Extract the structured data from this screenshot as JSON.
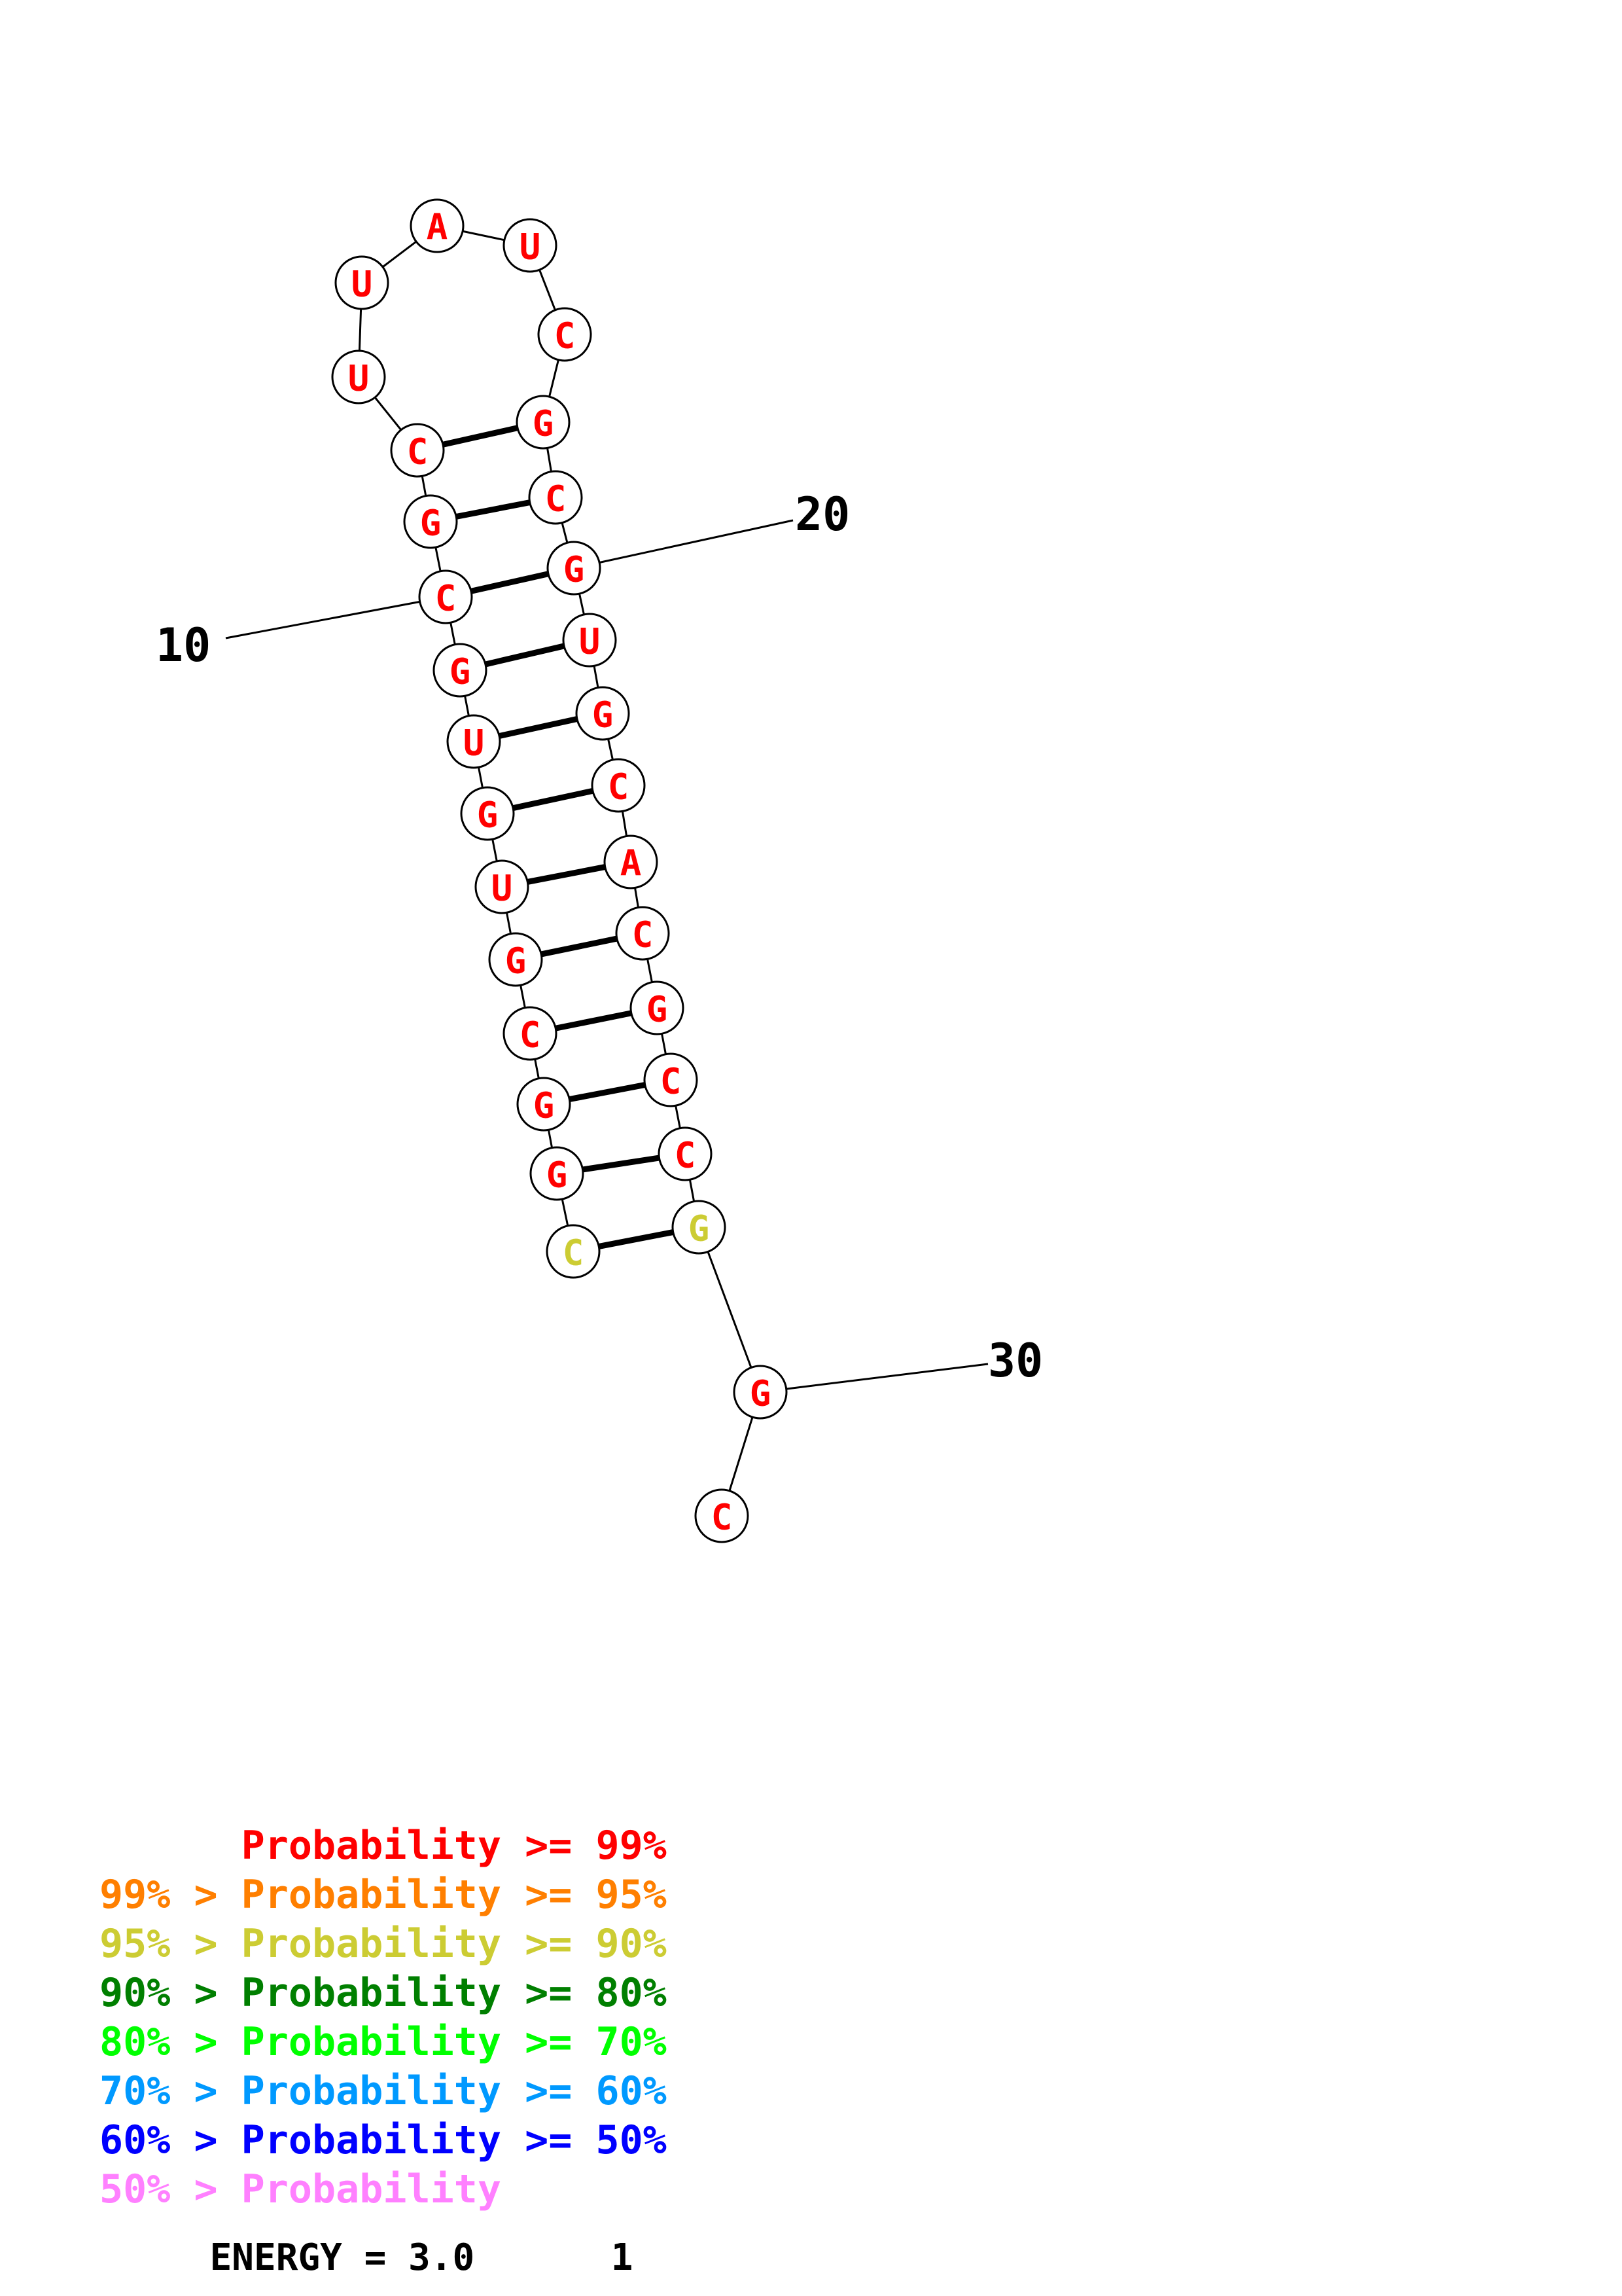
{
  "colors": {
    "ge99": "#ff0000",
    "ge95": "#ff7f00",
    "ge90": "#cccc33",
    "ge80": "#007f00",
    "ge70": "#00ff00",
    "ge60": "#0099ff",
    "ge50": "#0000ff",
    "lt50": "#ff80ff"
  },
  "nucleotides": [
    {
      "base": "C",
      "prob": "ge90"
    },
    {
      "base": "G",
      "prob": "ge99"
    },
    {
      "base": "G",
      "prob": "ge99"
    },
    {
      "base": "C",
      "prob": "ge99"
    },
    {
      "base": "G",
      "prob": "ge99"
    },
    {
      "base": "U",
      "prob": "ge99"
    },
    {
      "base": "G",
      "prob": "ge99"
    },
    {
      "base": "U",
      "prob": "ge99"
    },
    {
      "base": "G",
      "prob": "ge99"
    },
    {
      "base": "C",
      "prob": "ge99"
    },
    {
      "base": "G",
      "prob": "ge99"
    },
    {
      "base": "C",
      "prob": "ge99"
    },
    {
      "base": "U",
      "prob": "ge99"
    },
    {
      "base": "U",
      "prob": "ge99"
    },
    {
      "base": "A",
      "prob": "ge99"
    },
    {
      "base": "U",
      "prob": "ge99"
    },
    {
      "base": "C",
      "prob": "ge99"
    },
    {
      "base": "G",
      "prob": "ge99"
    },
    {
      "base": "C",
      "prob": "ge99"
    },
    {
      "base": "G",
      "prob": "ge99"
    },
    {
      "base": "U",
      "prob": "ge99"
    },
    {
      "base": "G",
      "prob": "ge99"
    },
    {
      "base": "C",
      "prob": "ge99"
    },
    {
      "base": "A",
      "prob": "ge99"
    },
    {
      "base": "C",
      "prob": "ge99"
    },
    {
      "base": "G",
      "prob": "ge99"
    },
    {
      "base": "C",
      "prob": "ge99"
    },
    {
      "base": "C",
      "prob": "ge99"
    },
    {
      "base": "G",
      "prob": "ge90"
    },
    {
      "base": "G",
      "prob": "ge99"
    },
    {
      "base": "C",
      "prob": "ge99"
    }
  ],
  "pairs": [
    [
      1,
      29
    ],
    [
      2,
      28
    ],
    [
      3,
      27
    ],
    [
      4,
      26
    ],
    [
      5,
      25
    ],
    [
      6,
      24
    ],
    [
      7,
      23
    ],
    [
      8,
      22
    ],
    [
      9,
      21
    ],
    [
      10,
      20
    ],
    [
      11,
      19
    ],
    [
      12,
      18
    ]
  ],
  "position_labels": [
    {
      "index": 10,
      "text": "10"
    },
    {
      "index": 20,
      "text": "20"
    },
    {
      "index": 30,
      "text": "30"
    }
  ],
  "legend": [
    {
      "prefix": "    ",
      "text": "Probability >= 99%",
      "color_key": "ge99"
    },
    {
      "prefix": "99% > ",
      "text": "Probability >= 95%",
      "color_key": "ge95"
    },
    {
      "prefix": "95% > ",
      "text": "Probability >= 90%",
      "color_key": "ge90"
    },
    {
      "prefix": "90% > ",
      "text": "Probability >= 80%",
      "color_key": "ge80"
    },
    {
      "prefix": "80% > ",
      "text": "Probability >= 70%",
      "color_key": "ge70"
    },
    {
      "prefix": "70% > ",
      "text": "Probability >= 60%",
      "color_key": "ge60"
    },
    {
      "prefix": "60% > ",
      "text": "Probability >= 50%",
      "color_key": "ge50"
    },
    {
      "prefix": "50% > ",
      "text": "Probability",
      "color_key": "lt50"
    }
  ],
  "energy": {
    "label": "ENERGY = 3.0",
    "structure_number": "1"
  }
}
